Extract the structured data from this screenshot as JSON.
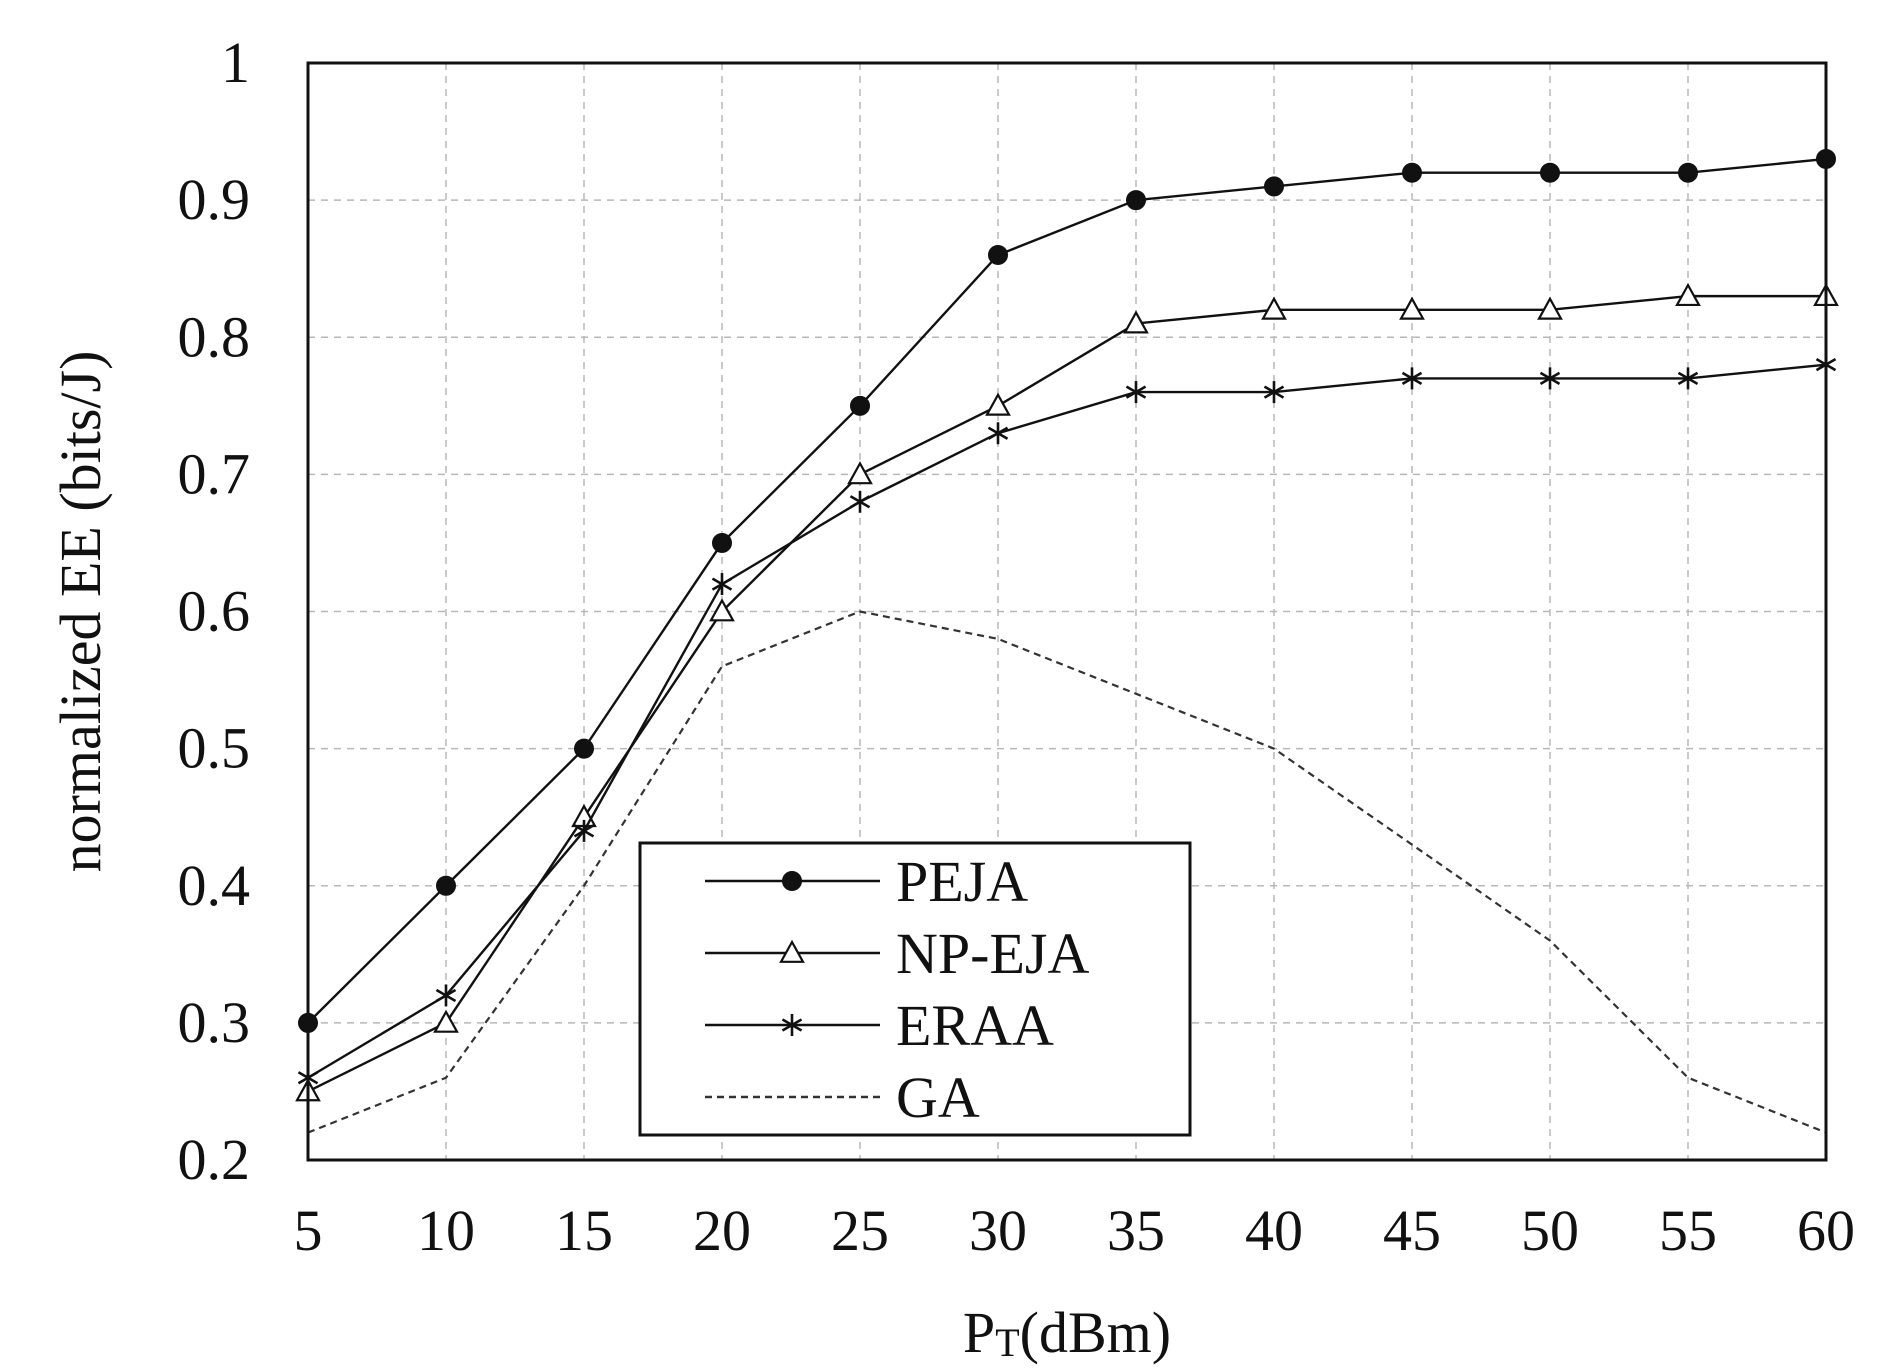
{
  "chart_data": {
    "type": "line",
    "title": "",
    "xlabel": "PT(dBm)",
    "xlabel_main": "P",
    "xlabel_sub": "T",
    "xlabel_unit": "(dBm)",
    "ylabel": "normalized EE (bits/J)",
    "x": [
      5,
      10,
      15,
      20,
      25,
      30,
      35,
      40,
      45,
      50,
      55,
      60
    ],
    "xlim": [
      5,
      60
    ],
    "ylim": [
      0.2,
      1.0
    ],
    "x_ticks": [
      "5",
      "10",
      "15",
      "20",
      "25",
      "30",
      "35",
      "40",
      "45",
      "50",
      "55",
      "60"
    ],
    "y_ticks": [
      "0.2",
      "0.3",
      "0.4",
      "0.5",
      "0.6",
      "0.7",
      "0.8",
      "0.9",
      "1"
    ],
    "y_tick_values": [
      0.2,
      0.3,
      0.4,
      0.5,
      0.6,
      0.7,
      0.8,
      0.9,
      1.0
    ],
    "grid": true,
    "legend_position": "bottom-center",
    "series": [
      {
        "name": "PEJA",
        "marker": "filled-circle",
        "line": "solid",
        "color": "#111111",
        "values": [
          0.3,
          0.4,
          0.5,
          0.65,
          0.75,
          0.86,
          0.9,
          0.91,
          0.92,
          0.92,
          0.92,
          0.93
        ]
      },
      {
        "name": "NP-EJA",
        "marker": "triangle",
        "line": "solid",
        "color": "#111111",
        "values": [
          0.25,
          0.3,
          0.45,
          0.6,
          0.7,
          0.75,
          0.81,
          0.82,
          0.82,
          0.82,
          0.83,
          0.83
        ]
      },
      {
        "name": "ERAA",
        "marker": "asterisk",
        "line": "solid",
        "color": "#111111",
        "values": [
          0.26,
          0.32,
          0.44,
          0.62,
          0.68,
          0.73,
          0.76,
          0.76,
          0.77,
          0.77,
          0.77,
          0.78
        ]
      },
      {
        "name": "GA",
        "marker": "none",
        "line": "dashed",
        "color": "#333333",
        "values": [
          0.22,
          0.26,
          0.4,
          0.56,
          0.6,
          0.58,
          0.54,
          0.5,
          0.43,
          0.36,
          0.26,
          0.22
        ]
      }
    ]
  }
}
